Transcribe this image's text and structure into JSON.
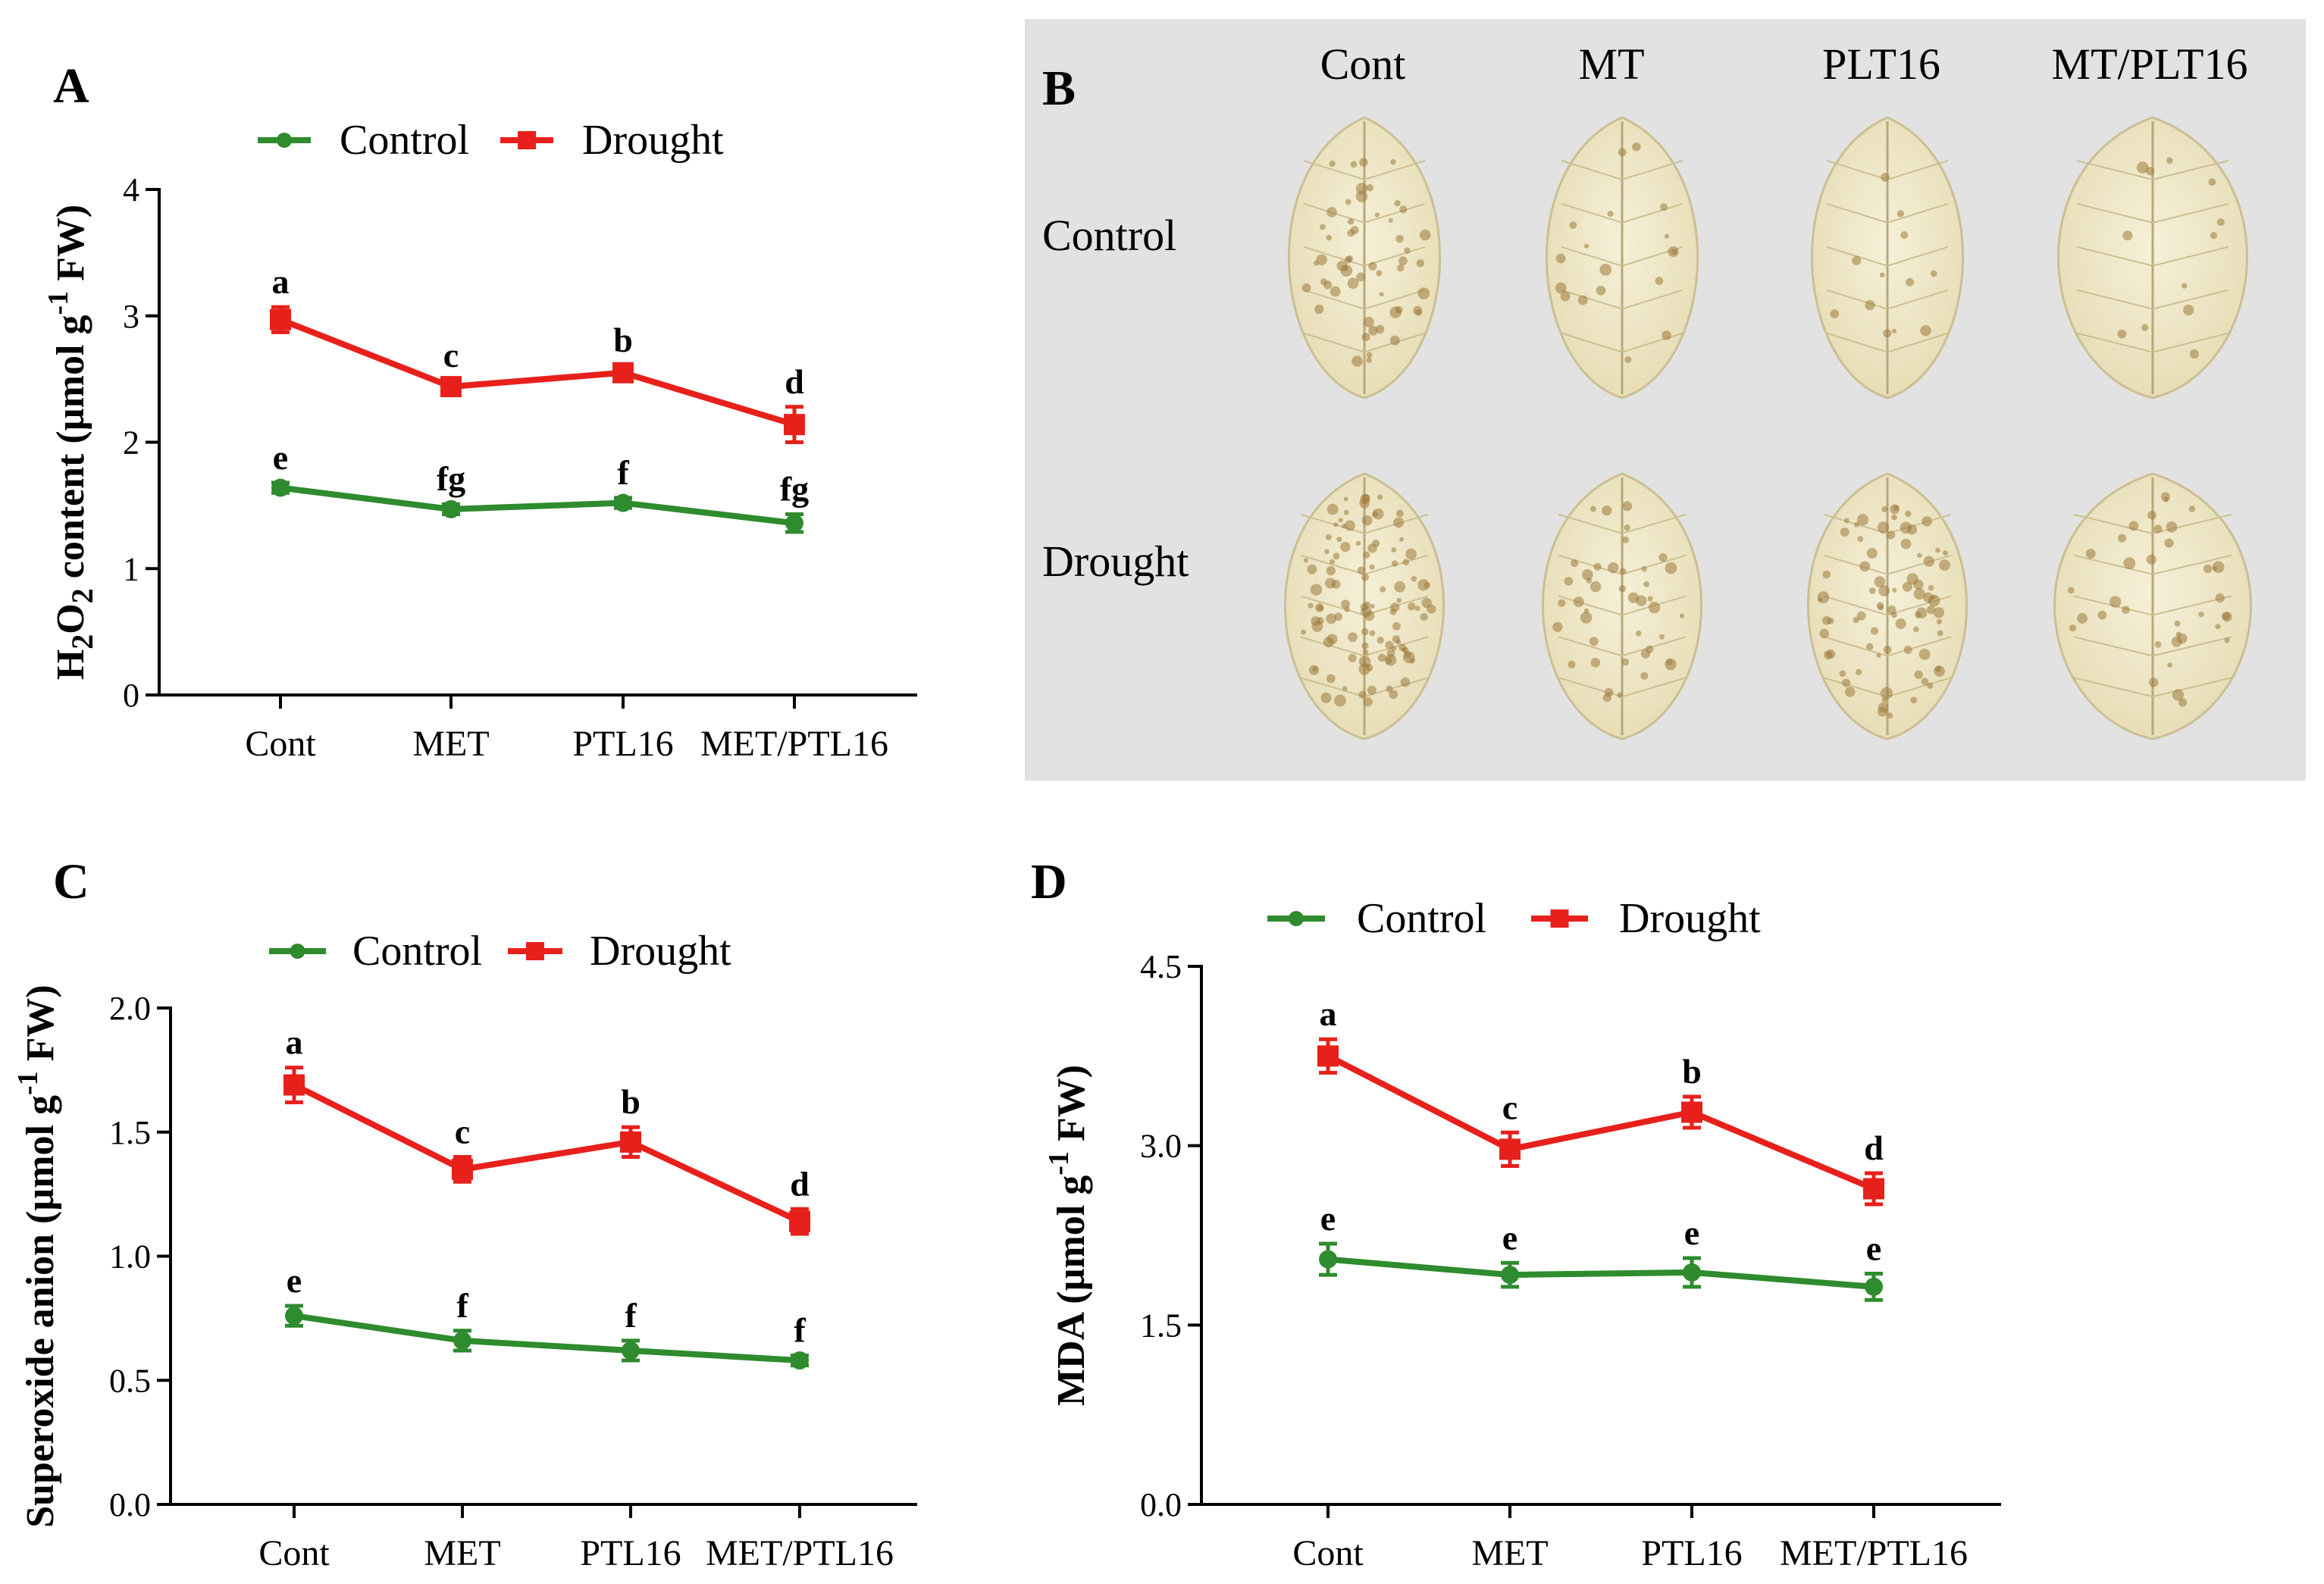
{
  "colors": {
    "control": "#2e8b2e",
    "drought": "#e8201c",
    "axis": "#000000",
    "photo_bg": "#e2e2e2"
  },
  "chart_data": [
    {
      "panel": "A",
      "type": "line",
      "categories": [
        "Cont",
        "MET",
        "PTL16",
        "MET/PTL16"
      ],
      "ylabel_parts": [
        "H",
        "2",
        "O",
        "2",
        " content (µmol g",
        "-1",
        " FW)"
      ],
      "ylim": [
        0,
        4
      ],
      "yticks": [
        "0",
        "1",
        "2",
        "3",
        "4"
      ],
      "legend": [
        "Control",
        "Drought"
      ],
      "series": [
        {
          "name": "Control",
          "values": [
            1.64,
            1.47,
            1.52,
            1.36
          ],
          "errors": [
            0.04,
            0.04,
            0.04,
            0.07
          ],
          "labels": [
            "e",
            "fg",
            "f",
            "fg"
          ]
        },
        {
          "name": "Drought",
          "values": [
            2.97,
            2.44,
            2.55,
            2.14
          ],
          "errors": [
            0.1,
            0.05,
            0.06,
            0.14
          ],
          "labels": [
            "a",
            "c",
            "b",
            "d"
          ]
        }
      ]
    },
    {
      "panel": "C",
      "type": "line",
      "categories": [
        "Cont",
        "MET",
        "PTL16",
        "MET/PTL16"
      ],
      "ylabel_parts": [
        "Superoxide anion (µmol g",
        "-1",
        " FW)"
      ],
      "ylim": [
        0,
        2
      ],
      "yticks": [
        "0.0",
        "0.5",
        "1.0",
        "1.5",
        "2.0"
      ],
      "legend": [
        "Control",
        "Drought"
      ],
      "series": [
        {
          "name": "Control",
          "values": [
            0.76,
            0.66,
            0.62,
            0.58
          ],
          "errors": [
            0.04,
            0.04,
            0.04,
            0.02
          ],
          "labels": [
            "e",
            "f",
            "f",
            "f"
          ]
        },
        {
          "name": "Drought",
          "values": [
            1.69,
            1.35,
            1.46,
            1.14
          ],
          "errors": [
            0.07,
            0.05,
            0.06,
            0.05
          ],
          "labels": [
            "a",
            "c",
            "b",
            "d"
          ]
        }
      ]
    },
    {
      "panel": "D",
      "type": "line",
      "categories": [
        "Cont",
        "MET",
        "PTL16",
        "MET/PTL16"
      ],
      "ylabel_parts": [
        "MDA (µmol g",
        "-1",
        " FW)"
      ],
      "ylim": [
        0,
        4.5
      ],
      "yticks": [
        "0.0",
        "1.5",
        "3.0",
        "4.5"
      ],
      "legend": [
        "Control",
        "Drought"
      ],
      "series": [
        {
          "name": "Control",
          "values": [
            2.05,
            1.92,
            1.94,
            1.82
          ],
          "errors": [
            0.13,
            0.1,
            0.12,
            0.11
          ],
          "labels": [
            "e",
            "e",
            "e",
            "e"
          ]
        },
        {
          "name": "Drought",
          "values": [
            3.75,
            2.97,
            3.28,
            2.64
          ],
          "errors": [
            0.14,
            0.14,
            0.13,
            0.13
          ],
          "labels": [
            "a",
            "c",
            "b",
            "d"
          ]
        }
      ]
    }
  ],
  "panel_b": {
    "letter": "B",
    "column_labels": [
      "Cont",
      "MT",
      "PLT16",
      "MT/PLT16"
    ],
    "row_labels": [
      "Control",
      "Drought"
    ]
  }
}
